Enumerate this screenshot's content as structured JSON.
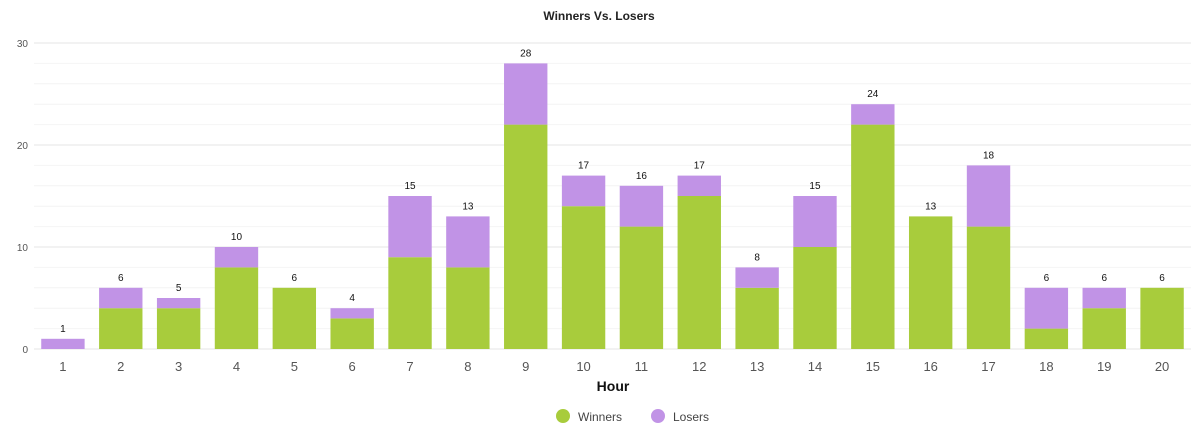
{
  "chart_data": {
    "type": "bar",
    "stacked": true,
    "title": "Winners Vs. Losers",
    "xlabel": "Hour",
    "ylabel": "",
    "ylim": [
      0,
      30
    ],
    "yticks": [
      0,
      10,
      20,
      30
    ],
    "grid": true,
    "legend": "bottom-center",
    "categories": [
      "1",
      "2",
      "3",
      "4",
      "5",
      "6",
      "7",
      "8",
      "9",
      "10",
      "11",
      "12",
      "13",
      "14",
      "15",
      "16",
      "17",
      "18",
      "19",
      "20"
    ],
    "series": [
      {
        "name": "Winners",
        "color": "#a8cc3c",
        "values": [
          0,
          4,
          4,
          8,
          6,
          3,
          9,
          8,
          22,
          14,
          12,
          15,
          6,
          10,
          22,
          13,
          12,
          2,
          4,
          6
        ]
      },
      {
        "name": "Losers",
        "color": "#c193e6",
        "values": [
          1,
          2,
          1,
          2,
          0,
          1,
          6,
          5,
          6,
          3,
          4,
          2,
          2,
          5,
          2,
          0,
          6,
          4,
          2,
          0
        ]
      }
    ],
    "totals": [
      1,
      6,
      5,
      10,
      6,
      4,
      15,
      13,
      28,
      17,
      16,
      17,
      8,
      15,
      24,
      13,
      18,
      6,
      6,
      6
    ]
  }
}
